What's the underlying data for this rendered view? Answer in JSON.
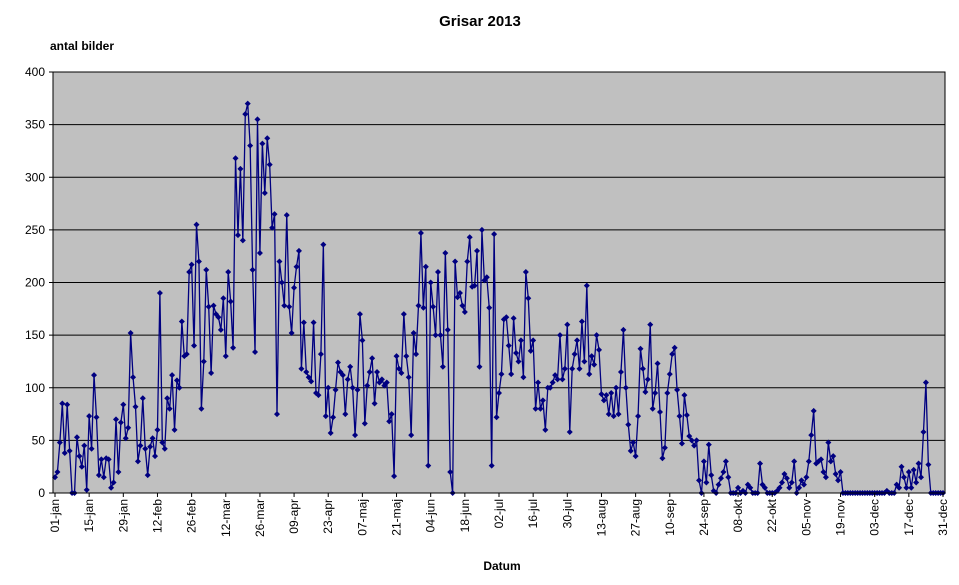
{
  "chart_data": {
    "type": "line",
    "title": "Grisar 2013",
    "y_label": "antal bilder",
    "x_label": "Datum",
    "categories": [
      "01-jan",
      null,
      null,
      null,
      null,
      null,
      null,
      null,
      null,
      null,
      null,
      null,
      null,
      null,
      "15-jan",
      null,
      null,
      null,
      null,
      null,
      null,
      null,
      null,
      null,
      null,
      null,
      null,
      null,
      "29-jan",
      null,
      null,
      null,
      null,
      null,
      null,
      null,
      null,
      null,
      null,
      null,
      null,
      null,
      "12-feb",
      null,
      null,
      null,
      null,
      null,
      null,
      null,
      null,
      null,
      null,
      null,
      null,
      null,
      "26-feb",
      null,
      null,
      null,
      null,
      null,
      null,
      null,
      null,
      null,
      null,
      null,
      null,
      null,
      "12-mar",
      null,
      null,
      null,
      null,
      null,
      null,
      null,
      null,
      null,
      null,
      null,
      null,
      null,
      "26-mar",
      null,
      null,
      null,
      null,
      null,
      null,
      null,
      null,
      null,
      null,
      null,
      null,
      null,
      "09-apr",
      null,
      null,
      null,
      null,
      null,
      null,
      null,
      null,
      null,
      null,
      null,
      null,
      null,
      "23-apr",
      null,
      null,
      null,
      null,
      null,
      null,
      null,
      null,
      null,
      null,
      null,
      null,
      null,
      "07-maj",
      null,
      null,
      null,
      null,
      null,
      null,
      null,
      null,
      null,
      null,
      null,
      null,
      null,
      "21-maj",
      null,
      null,
      null,
      null,
      null,
      null,
      null,
      null,
      null,
      null,
      null,
      null,
      null,
      "04-jun",
      null,
      null,
      null,
      null,
      null,
      null,
      null,
      null,
      null,
      null,
      null,
      null,
      null,
      "18-jun",
      null,
      null,
      null,
      null,
      null,
      null,
      null,
      null,
      null,
      null,
      null,
      null,
      null,
      "02-jul",
      null,
      null,
      null,
      null,
      null,
      null,
      null,
      null,
      null,
      null,
      null,
      null,
      null,
      "16-jul",
      null,
      null,
      null,
      null,
      null,
      null,
      null,
      null,
      null,
      null,
      null,
      null,
      null,
      "30-jul",
      null,
      null,
      null,
      null,
      null,
      null,
      null,
      null,
      null,
      null,
      null,
      null,
      null,
      "13-aug",
      null,
      null,
      null,
      null,
      null,
      null,
      null,
      null,
      null,
      null,
      null,
      null,
      null,
      "27-aug",
      null,
      null,
      null,
      null,
      null,
      null,
      null,
      null,
      null,
      null,
      null,
      null,
      null,
      "10-sep",
      null,
      null,
      null,
      null,
      null,
      null,
      null,
      null,
      null,
      null,
      null,
      null,
      null,
      "24-sep",
      null,
      null,
      null,
      null,
      null,
      null,
      null,
      null,
      null,
      null,
      null,
      null,
      null,
      "08-okt",
      null,
      null,
      null,
      null,
      null,
      null,
      null,
      null,
      null,
      null,
      null,
      null,
      null,
      "22-okt",
      null,
      null,
      null,
      null,
      null,
      null,
      null,
      null,
      null,
      null,
      null,
      null,
      null,
      "05-nov",
      null,
      null,
      null,
      null,
      null,
      null,
      null,
      null,
      null,
      null,
      null,
      null,
      null,
      "19-nov",
      null,
      null,
      null,
      null,
      null,
      null,
      null,
      null,
      null,
      null,
      null,
      null,
      null,
      "03-dec",
      null,
      null,
      null,
      null,
      null,
      null,
      null,
      null,
      null,
      null,
      null,
      null,
      null,
      "17-dec",
      null,
      null,
      null,
      null,
      null,
      null,
      null,
      null,
      null,
      null,
      null,
      null,
      null,
      "31-dec"
    ],
    "values": [
      15,
      20,
      48,
      85,
      38,
      84,
      40,
      0,
      0,
      53,
      35,
      25,
      45,
      3,
      73,
      42,
      112,
      72,
      17,
      32,
      15,
      33,
      32,
      5,
      10,
      70,
      20,
      67,
      84,
      52,
      62,
      152,
      110,
      82,
      30,
      45,
      90,
      42,
      17,
      44,
      52,
      35,
      60,
      190,
      48,
      42,
      90,
      80,
      112,
      60,
      107,
      100,
      163,
      130,
      132,
      210,
      217,
      140,
      255,
      220,
      80,
      125,
      212,
      177,
      114,
      178,
      170,
      167,
      155,
      185,
      130,
      210,
      182,
      138,
      318,
      245,
      308,
      240,
      360,
      370,
      330,
      212,
      134,
      355,
      228,
      332,
      285,
      337,
      312,
      252,
      265,
      75,
      220,
      200,
      178,
      264,
      177,
      152,
      195,
      215,
      230,
      118,
      162,
      115,
      110,
      106,
      162,
      95,
      93,
      132,
      236,
      73,
      100,
      57,
      72,
      98,
      124,
      115,
      112,
      75,
      108,
      120,
      100,
      55,
      98,
      170,
      145,
      66,
      102,
      115,
      128,
      85,
      115,
      105,
      108,
      102,
      105,
      68,
      75,
      16,
      130,
      118,
      114,
      170,
      130,
      110,
      55,
      152,
      132,
      178,
      247,
      176,
      215,
      26,
      200,
      177,
      150,
      210,
      150,
      120,
      228,
      155,
      20,
      0,
      220,
      186,
      190,
      178,
      172,
      220,
      243,
      196,
      197,
      230,
      120,
      250,
      202,
      205,
      176,
      26,
      246,
      72,
      95,
      113,
      165,
      167,
      140,
      113,
      166,
      133,
      125,
      145,
      110,
      210,
      185,
      135,
      145,
      80,
      105,
      80,
      88,
      60,
      100,
      100,
      105,
      112,
      108,
      150,
      108,
      118,
      160,
      58,
      118,
      132,
      145,
      118,
      163,
      125,
      197,
      113,
      130,
      122,
      150,
      136,
      94,
      88,
      93,
      75,
      95,
      73,
      100,
      75,
      115,
      155,
      100,
      65,
      40,
      48,
      35,
      73,
      137,
      118,
      96,
      108,
      160,
      80,
      95,
      123,
      77,
      33,
      43,
      95,
      113,
      132,
      138,
      98,
      73,
      47,
      93,
      74,
      54,
      50,
      45,
      50,
      12,
      0,
      30,
      10,
      46,
      17,
      2,
      0,
      8,
      14,
      20,
      30,
      15,
      0,
      0,
      0,
      5,
      0,
      2,
      0,
      8,
      5,
      0,
      0,
      0,
      28,
      8,
      5,
      0,
      0,
      0,
      0,
      2,
      5,
      10,
      18,
      14,
      5,
      10,
      30,
      0,
      5,
      12,
      8,
      15,
      30,
      55,
      78,
      28,
      30,
      32,
      20,
      15,
      48,
      30,
      35,
      18,
      12,
      20,
      0,
      0,
      0,
      0,
      0,
      0,
      0,
      0,
      0,
      0,
      0,
      0,
      0,
      0,
      0,
      0,
      0,
      0,
      2,
      0,
      0,
      0,
      8,
      5,
      25,
      15,
      5,
      20,
      5,
      22,
      10,
      28,
      15,
      58,
      105,
      27,
      0,
      0,
      0,
      0,
      0,
      0
    ],
    "color": "#000080",
    "ylim": [
      0,
      400
    ],
    "yticks": [
      0,
      50,
      100,
      150,
      200,
      250,
      300,
      350,
      400
    ],
    "grid": true
  }
}
